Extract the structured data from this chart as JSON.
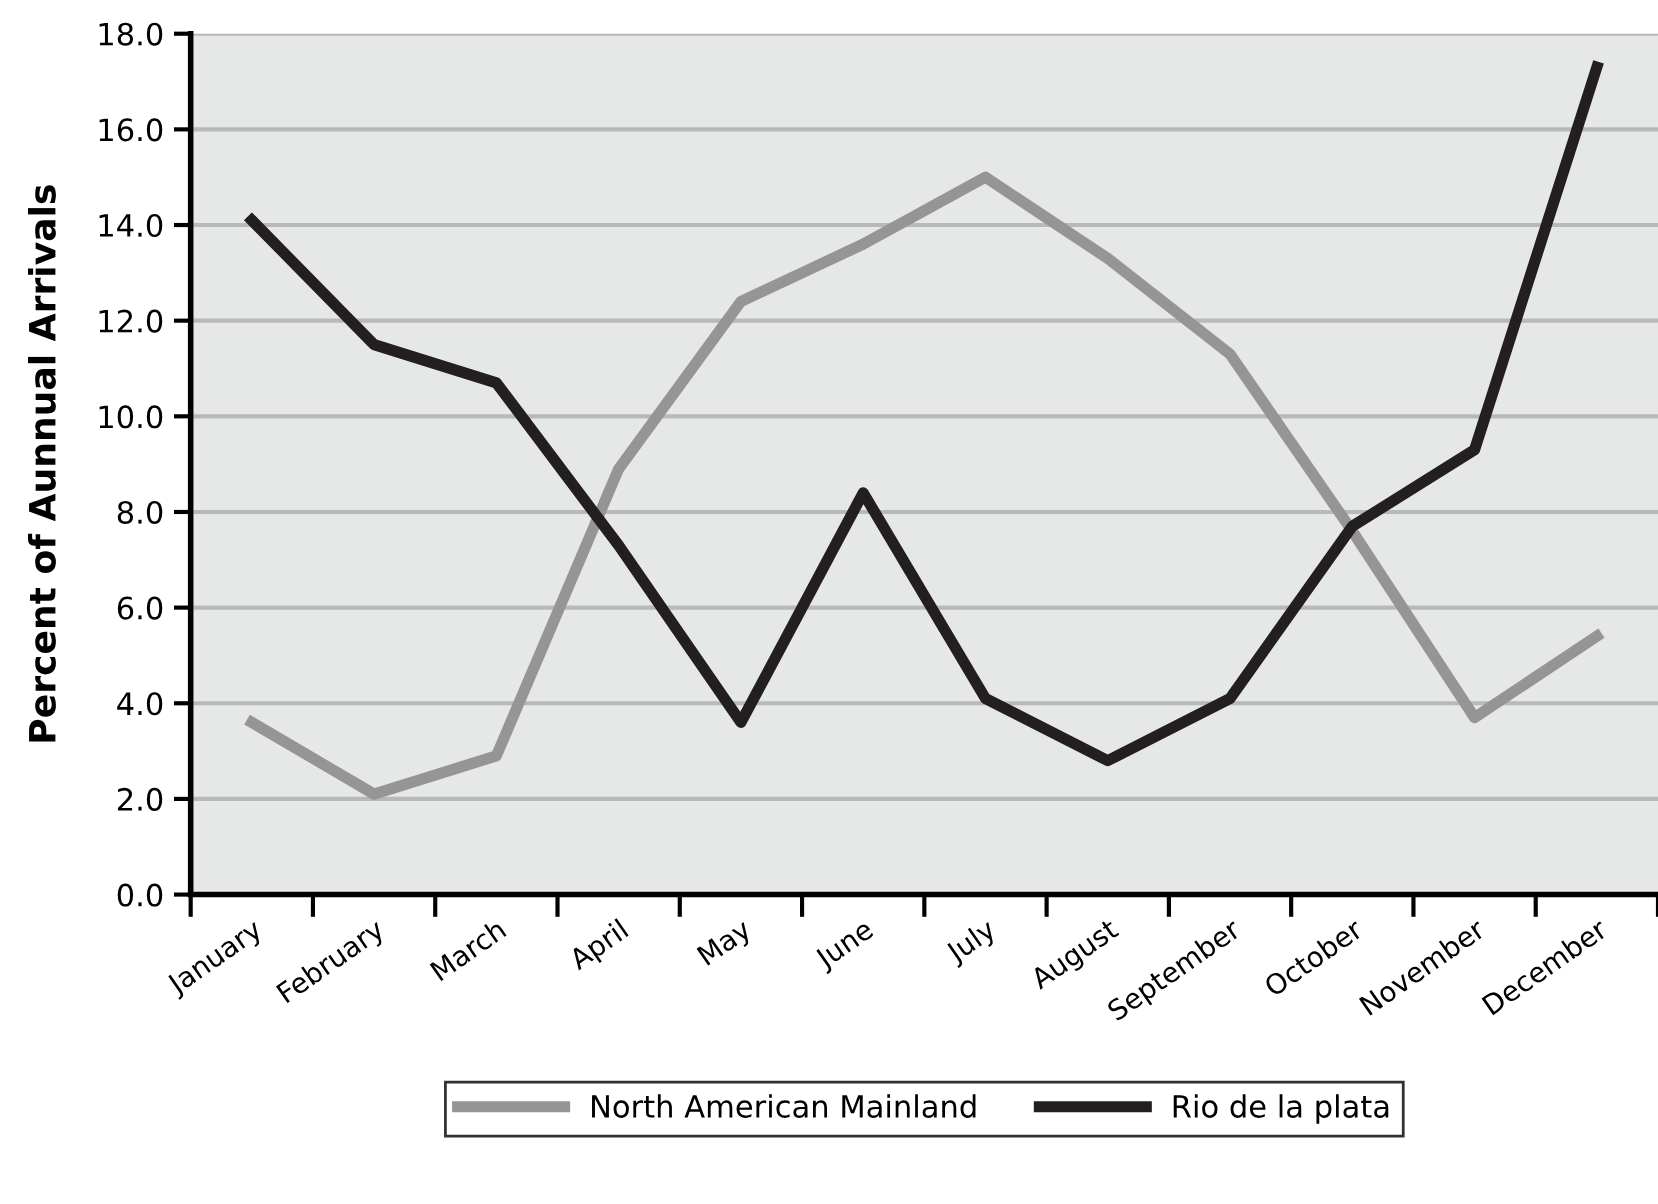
{
  "chart_data": {
    "type": "line",
    "ylabel": "Percent of Aunnual Arrivals",
    "categories": [
      "January",
      "February",
      "March",
      "April",
      "May",
      "June",
      "July",
      "August",
      "September",
      "October",
      "November",
      "December"
    ],
    "series": [
      {
        "name": "North American Mainland",
        "color": "#959595",
        "values": [
          3.6,
          2.1,
          2.9,
          8.9,
          12.4,
          13.6,
          15.0,
          13.3,
          11.3,
          7.6,
          3.7,
          5.4
        ]
      },
      {
        "name": "Rio de la plata",
        "color": "#231f20",
        "values": [
          14.1,
          11.5,
          10.7,
          7.3,
          3.6,
          8.4,
          4.1,
          2.8,
          4.1,
          7.7,
          9.3,
          17.3
        ]
      }
    ],
    "ylim": [
      0,
      18
    ],
    "yticks": [
      {
        "value": 0,
        "label": "0.0"
      },
      {
        "value": 2,
        "label": "2.0"
      },
      {
        "value": 4,
        "label": "4.0"
      },
      {
        "value": 6,
        "label": "6.0"
      },
      {
        "value": 8,
        "label": "8.0"
      },
      {
        "value": 10,
        "label": "10.0"
      },
      {
        "value": 12,
        "label": "12.0"
      },
      {
        "value": 14,
        "label": "14.0"
      },
      {
        "value": 16,
        "label": "16.0"
      },
      {
        "value": 18,
        "label": "18.0"
      }
    ],
    "grid": "y",
    "legend": "bottom",
    "marker": "none",
    "line_style": "solid"
  }
}
